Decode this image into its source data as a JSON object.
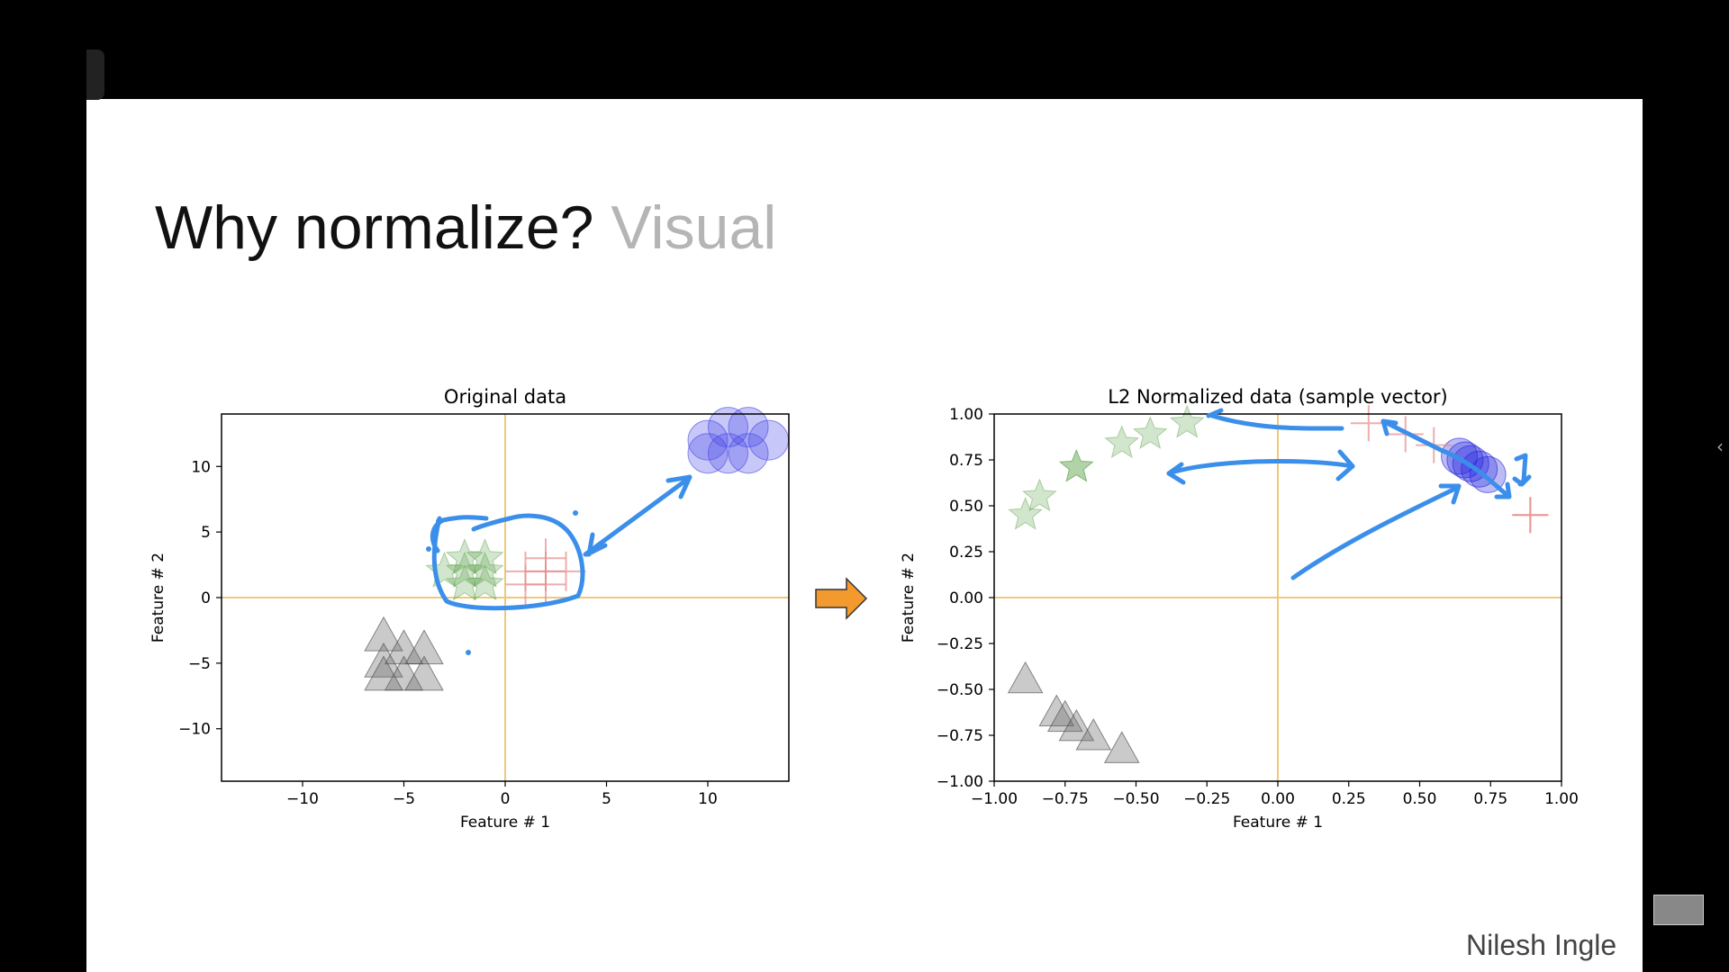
{
  "slide": {
    "title_main": "Why normalize?",
    "title_sub": "Visual",
    "author": "Nilesh Ingle"
  },
  "chart_data": [
    {
      "type": "scatter",
      "title": "Original data",
      "xlabel": "Feature # 1",
      "ylabel": "Feature # 2",
      "xlim": [
        -14,
        14
      ],
      "ylim": [
        -14,
        14
      ],
      "xticks": [
        -10,
        -5,
        0,
        5,
        10
      ],
      "yticks": [
        -10,
        -5,
        0,
        5,
        10
      ],
      "xtick_labels": [
        "−10",
        "−5",
        "0",
        "5",
        "10"
      ],
      "ytick_labels": [
        "−10",
        "−5",
        "0",
        "5",
        "10"
      ],
      "axis_lines": true,
      "grid": false,
      "series": [
        {
          "marker": "circle",
          "color": "#4a4ae8",
          "points": [
            [
              10,
              12
            ],
            [
              11,
              11
            ],
            [
              12,
              13
            ],
            [
              13,
              12
            ],
            [
              12,
              11
            ],
            [
              11,
              13
            ],
            [
              10,
              11
            ]
          ]
        },
        {
          "marker": "star",
          "color": "#6aaa5a",
          "points": [
            [
              -3,
              2
            ],
            [
              -2,
              3
            ],
            [
              -1,
              2
            ],
            [
              -2,
              1
            ],
            [
              -1,
              3
            ],
            [
              -2,
              2
            ],
            [
              -1,
              1
            ]
          ]
        },
        {
          "marker": "plus",
          "color": "#e88a8a",
          "points": [
            [
              1,
              2
            ],
            [
              2,
              3
            ],
            [
              3,
              2
            ],
            [
              2,
              1
            ],
            [
              1,
              1
            ],
            [
              2,
              2
            ]
          ]
        },
        {
          "marker": "triangle",
          "color": "#666666",
          "points": [
            [
              -6,
              -3
            ],
            [
              -5,
              -4
            ],
            [
              -4,
              -4
            ],
            [
              -6,
              -5
            ],
            [
              -5,
              -6
            ],
            [
              -4,
              -6
            ],
            [
              -6,
              -6
            ]
          ]
        }
      ]
    },
    {
      "type": "scatter",
      "title": "L2 Normalized data (sample vector)",
      "xlabel": "Feature # 1",
      "ylabel": "Feature # 2",
      "xlim": [
        -1,
        1
      ],
      "ylim": [
        -1,
        1
      ],
      "xticks": [
        -1,
        -0.75,
        -0.5,
        -0.25,
        0,
        0.25,
        0.5,
        0.75,
        1
      ],
      "yticks": [
        -1,
        -0.75,
        -0.5,
        -0.25,
        0,
        0.25,
        0.5,
        0.75,
        1
      ],
      "xtick_labels": [
        "−1.00",
        "−0.75",
        "−0.50",
        "−0.25",
        "0.00",
        "0.25",
        "0.50",
        "0.75",
        "1.00"
      ],
      "ytick_labels": [
        "−1.00",
        "−0.75",
        "−0.50",
        "−0.25",
        "0.00",
        "0.25",
        "0.50",
        "0.75",
        "1.00"
      ],
      "axis_lines": true,
      "grid": false,
      "series": [
        {
          "marker": "circle",
          "color": "#2222dd",
          "points": [
            [
              0.64,
              0.77
            ],
            [
              0.68,
              0.73
            ],
            [
              0.71,
              0.7
            ],
            [
              0.74,
              0.67
            ],
            [
              0.66,
              0.75
            ]
          ]
        },
        {
          "marker": "star",
          "color": "#6aaa5a",
          "points": [
            [
              -0.89,
              0.45
            ],
            [
              -0.84,
              0.55
            ],
            [
              -0.71,
              0.71
            ],
            [
              -0.55,
              0.84
            ],
            [
              -0.45,
              0.89
            ],
            [
              -0.32,
              0.95
            ],
            [
              -0.71,
              0.71
            ]
          ]
        },
        {
          "marker": "plus",
          "color": "#e88a8a",
          "points": [
            [
              0.32,
              0.95
            ],
            [
              0.45,
              0.89
            ],
            [
              0.55,
              0.83
            ],
            [
              0.89,
              0.45
            ],
            [
              0.89,
              0.45
            ]
          ]
        },
        {
          "marker": "triangle",
          "color": "#666666",
          "points": [
            [
              -0.89,
              -0.45
            ],
            [
              -0.78,
              -0.63
            ],
            [
              -0.75,
              -0.66
            ],
            [
              -0.71,
              -0.71
            ],
            [
              -0.65,
              -0.76
            ],
            [
              -0.55,
              -0.83
            ]
          ]
        }
      ]
    }
  ]
}
